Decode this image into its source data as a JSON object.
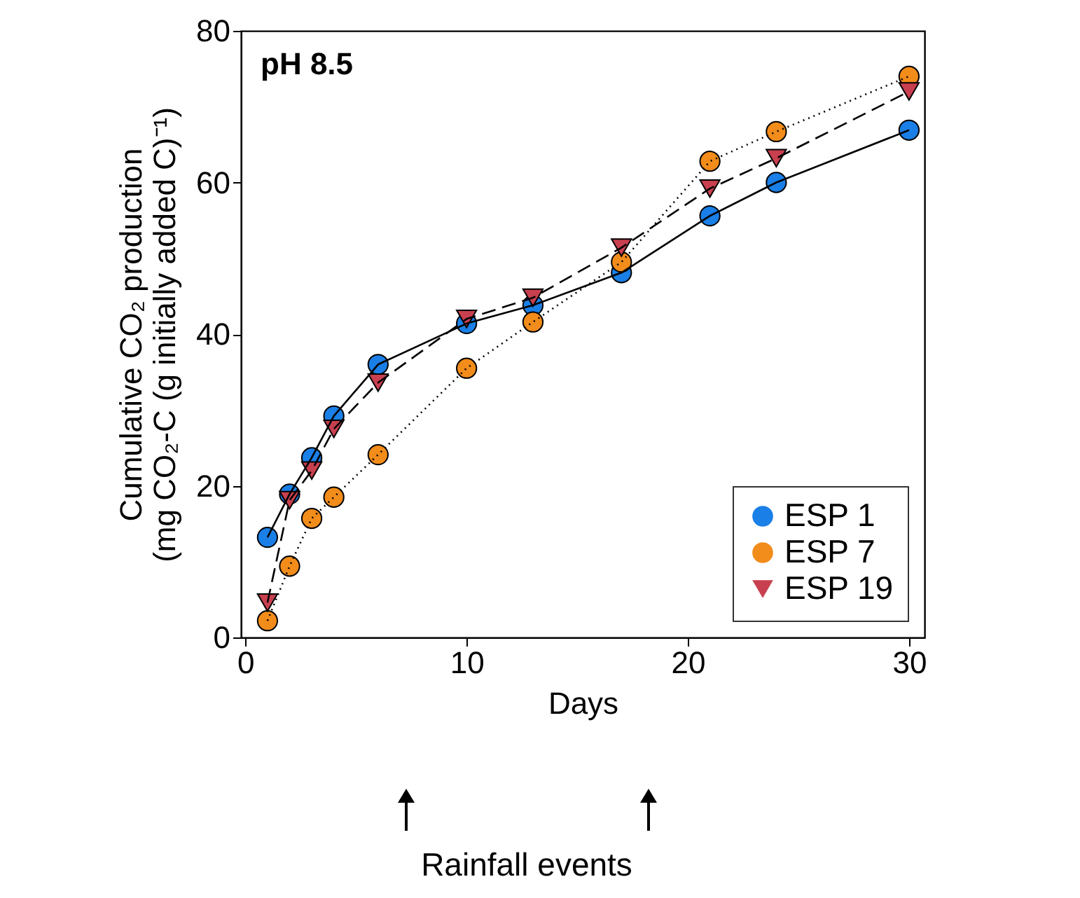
{
  "chart_data": {
    "type": "line",
    "xlabel": "Days",
    "ylabel": "Cumulative CO₂ production\n(mg CO₂-C (g initially added C)⁻¹)",
    "x": [
      1,
      2,
      3,
      4,
      6,
      10,
      13,
      17,
      21,
      24,
      30
    ],
    "series": [
      {
        "name": "ESP 1",
        "color": "#1a7fe6",
        "marker": "circle",
        "line_style": "solid",
        "values": [
          13.2,
          18.9,
          23.7,
          29.2,
          36,
          41.4,
          43.8,
          48.1,
          55.6,
          60,
          66.9
        ]
      },
      {
        "name": "ESP 7",
        "color": "#f28c1a",
        "marker": "circle",
        "line_style": "dotted",
        "values": [
          2.2,
          9.4,
          15.7,
          18.5,
          24.1,
          35.5,
          41.6,
          49.5,
          62.8,
          66.7,
          74
        ]
      },
      {
        "name": "ESP 19",
        "color": "#c8404f",
        "marker": "triangle",
        "line_style": "dashed",
        "values": [
          4.6,
          18.1,
          22,
          27.5,
          33.6,
          42,
          44.8,
          51.4,
          59.2,
          63.2,
          72
        ]
      }
    ],
    "xlim": [
      -0.2,
      30.7
    ],
    "ylim": [
      0,
      80
    ],
    "xticks": [
      0,
      10,
      20,
      30
    ],
    "yticks": [
      0,
      20,
      40,
      60,
      80
    ],
    "grid": false,
    "legend": "bottom right",
    "annotations": [
      "pH 8.5",
      "Rainfall events"
    ]
  }
}
